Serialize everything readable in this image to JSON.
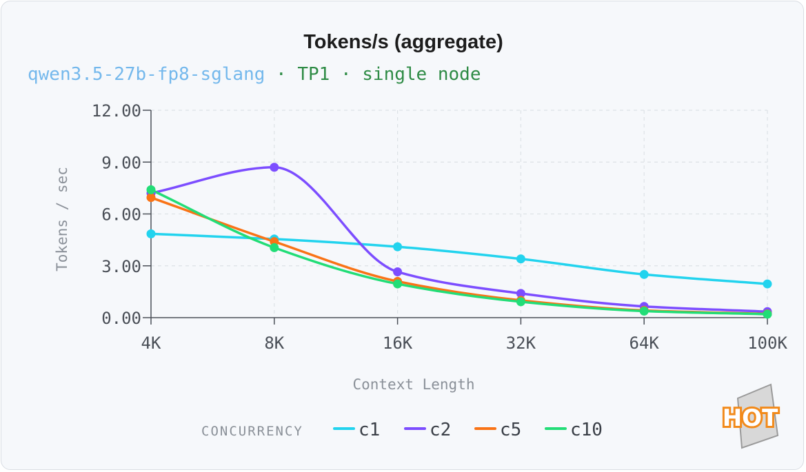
{
  "subtitle": {
    "model": "qwen3.5-27b-fp8-sglang",
    "sep1": " · ",
    "tp": "TP1",
    "sep2": " · ",
    "node": "single node"
  },
  "legend": {
    "title": "CONCURRENCY"
  },
  "badge": {
    "text": "HOT"
  },
  "colors": {
    "model": "#74b8ec",
    "meta": "#2e8b45",
    "grid": "#dde1e6",
    "axis": "#4a4f57"
  },
  "chart_data": {
    "type": "line",
    "title": "Tokens/s (aggregate)",
    "xlabel": "Context Length",
    "ylabel": "Tokens / sec",
    "categories": [
      "4K",
      "8K",
      "16K",
      "32K",
      "64K",
      "100K"
    ],
    "ylim": [
      0,
      12
    ],
    "yticks": [
      "0.00",
      "3.00",
      "6.00",
      "9.00",
      "12.00"
    ],
    "yticks_values": [
      0,
      3,
      6,
      9,
      12
    ],
    "grid": true,
    "series": [
      {
        "name": "c1",
        "color": "#22d3ee",
        "values": [
          4.85,
          4.55,
          4.1,
          3.4,
          2.5,
          1.95
        ]
      },
      {
        "name": "c2",
        "color": "#7c4dff",
        "values": [
          7.2,
          8.7,
          2.65,
          1.4,
          0.65,
          0.35
        ]
      },
      {
        "name": "c5",
        "color": "#f97316",
        "values": [
          6.95,
          4.4,
          2.1,
          1.0,
          0.42,
          0.22
        ]
      },
      {
        "name": "c10",
        "color": "#22dd77",
        "values": [
          7.4,
          4.05,
          1.95,
          0.92,
          0.38,
          0.2
        ]
      }
    ]
  }
}
